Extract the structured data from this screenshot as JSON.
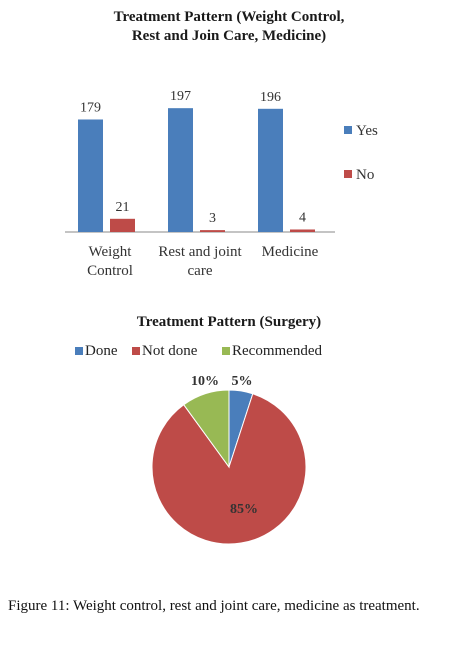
{
  "chart_data": [
    {
      "type": "bar",
      "title_line1": "Treatment Pattern (Weight Control,",
      "title_line2": "Rest and Join Care, Medicine)",
      "categories": [
        [
          "Weight",
          "Control"
        ],
        [
          "Rest and joint",
          "care"
        ],
        [
          "Medicine"
        ]
      ],
      "series": [
        {
          "name": "Yes",
          "values": [
            179,
            197,
            196
          ],
          "color": "#4a7ebb"
        },
        {
          "name": "No",
          "values": [
            21,
            3,
            4
          ],
          "color": "#be4b48"
        }
      ],
      "ylim": [
        0,
        210
      ],
      "grid": false,
      "legend_position": "right"
    },
    {
      "type": "pie",
      "title": "Treatment Pattern (Surgery)",
      "slices": [
        {
          "name": "Done",
          "value": 5,
          "label": "5%",
          "color": "#4a7ebb"
        },
        {
          "name": "Not done",
          "value": 85,
          "label": "85%",
          "color": "#be4b48"
        },
        {
          "name": "Recommended",
          "value": 10,
          "label": "10%",
          "color": "#98b954"
        }
      ],
      "legend_position": "top"
    }
  ],
  "caption": "Figure 11: Weight control, rest and joint care, medicine as treatment."
}
